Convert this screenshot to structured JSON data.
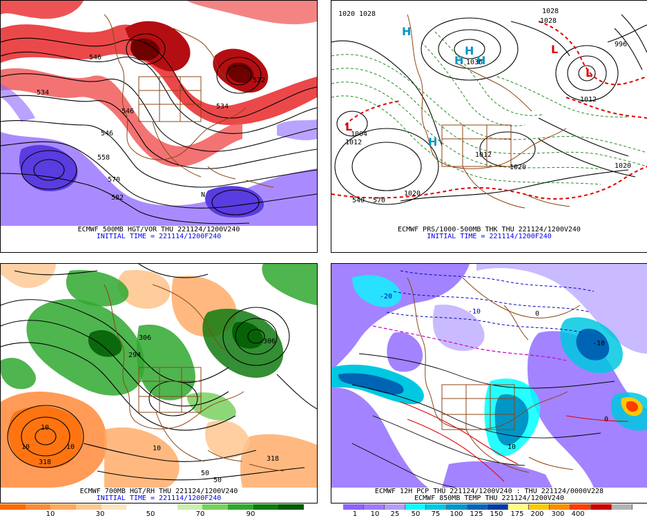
{
  "panels": {
    "tl": {
      "caption": "ECMWF 500MB HGT/VOR THU 221124/1200V240",
      "init": "INITIAL TIME = 221114/1200F240",
      "labels": [
        "546",
        "534",
        "546",
        "522",
        "534",
        "546",
        "558",
        "570",
        "582",
        "N"
      ]
    },
    "tr": {
      "caption": "ECMWF PRS/1000-500MB THK THU 221124/1200V240",
      "init": "INITIAL TIME = 221114/1200F240",
      "labels": [
        "1020",
        "1028",
        "1036",
        "1028",
        "996",
        "1012",
        "1004",
        "1012",
        "1020",
        "1020",
        "1028",
        "540",
        "570",
        "1012",
        "1020"
      ],
      "highs": [
        "H",
        "H",
        "H",
        "H",
        "H"
      ],
      "lows": [
        "L",
        "L",
        "L"
      ]
    },
    "bl": {
      "caption": "ECMWF 700MB HGT/RH THU 221124/1200V240",
      "init": "INITIAL TIME = 221114/1200F240",
      "labels": [
        "10",
        "10",
        "10",
        "318",
        "306",
        "50",
        "50",
        "10",
        "306",
        "318",
        "294"
      ]
    },
    "br": {
      "caption1": "ECMWF 12H PCP THU 221124/1200V240 : THU 221124/0000V228",
      "caption2": "ECMWF 850MB TEMP THU 221124/1200V240",
      "labels": [
        "-10",
        "-20",
        "0",
        "10",
        "-10",
        "0"
      ]
    }
  },
  "rh_colorbar": {
    "colors": [
      "#ff6a00",
      "#ff8a3a",
      "#ffa860",
      "#ffc690",
      "#ffe2c0",
      "#ffffff",
      "#ffffff",
      "#c8f0b0",
      "#7ad060",
      "#30a830",
      "#107a10",
      "#005a00"
    ],
    "labels": [
      "10",
      "30",
      "50",
      "70",
      "90"
    ]
  },
  "pcp_colorbar": {
    "colors": [
      "#8c64ff",
      "#9c7cff",
      "#b49cff",
      "#00ffff",
      "#00c8e0",
      "#0096c8",
      "#0064b4",
      "#003ca0",
      "#ffff80",
      "#ffc800",
      "#ff8c00",
      "#ff3c00",
      "#c80000",
      "#b4b4b4"
    ],
    "labels": [
      "1",
      "10",
      "25",
      "50",
      "75",
      "100",
      "125",
      "150",
      "175",
      "200",
      "300",
      "400"
    ]
  }
}
